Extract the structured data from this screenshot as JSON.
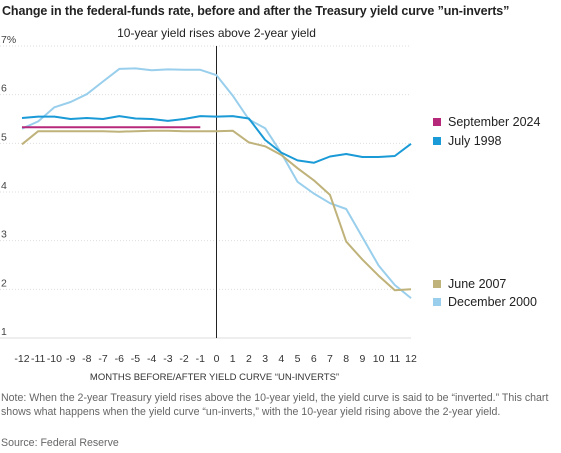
{
  "title": "Change in the federal-funds rate, before and after the Treasury yield curve ”un-inverts”",
  "note": "Note: When the 2-year Treasury yield rises above the 10-year yield, the yield curve is said to be “inverted.” This chart shows what happens when the yield curve “un-inverts,” with the 10-year yield rising above the 2-year yield.",
  "source": "Source: Federal Reserve",
  "chart_data": {
    "type": "line",
    "annotation": "10-year yield rises above 2-year yield",
    "xlabel": "MONTHS BEFORE/AFTER YIELD CURVE “UN-INVERTS”",
    "ylabel": "",
    "x": [
      -12,
      -11,
      -10,
      -9,
      -8,
      -7,
      -6,
      -5,
      -4,
      -3,
      -2,
      -1,
      0,
      1,
      2,
      3,
      4,
      5,
      6,
      7,
      8,
      9,
      10,
      11,
      12
    ],
    "xlim": [
      -12,
      12
    ],
    "ylim": [
      1,
      7
    ],
    "yticks": [
      1,
      2,
      3,
      4,
      5,
      6,
      7
    ],
    "ytick_labels": [
      "1",
      "2",
      "3",
      "4",
      "5",
      "6",
      "7%"
    ],
    "grid": true,
    "legend": "right, labels at line ends",
    "series": [
      {
        "name": "September 2024",
        "color": "#b5287a",
        "x": [
          -12,
          -11,
          -10,
          -9,
          -8,
          -7,
          -6,
          -5,
          -4,
          -3,
          -2,
          -1
        ],
        "values": [
          5.33,
          5.33,
          5.33,
          5.33,
          5.33,
          5.33,
          5.33,
          5.33,
          5.33,
          5.33,
          5.33,
          5.33
        ]
      },
      {
        "name": "July 1998",
        "color": "#1a9ad6",
        "x": [
          -12,
          -11,
          -10,
          -9,
          -8,
          -7,
          -6,
          -5,
          -4,
          -3,
          -2,
          -1,
          0,
          1,
          2,
          3,
          4,
          5,
          6,
          7,
          8,
          9,
          10,
          11,
          12
        ],
        "values": [
          5.52,
          5.55,
          5.55,
          5.5,
          5.52,
          5.5,
          5.56,
          5.51,
          5.5,
          5.46,
          5.5,
          5.56,
          5.55,
          5.56,
          5.51,
          5.07,
          4.81,
          4.65,
          4.6,
          4.73,
          4.78,
          4.72,
          4.72,
          4.74,
          4.99
        ]
      },
      {
        "name": "June 2007",
        "color": "#bfb27a",
        "x": [
          -12,
          -11,
          -10,
          -9,
          -8,
          -7,
          -6,
          -5,
          -4,
          -3,
          -2,
          -1,
          0,
          1,
          2,
          3,
          4,
          5,
          6,
          7,
          8,
          9,
          10,
          11,
          12
        ],
        "values": [
          4.98,
          5.25,
          5.25,
          5.25,
          5.25,
          5.25,
          5.24,
          5.25,
          5.26,
          5.26,
          5.25,
          5.25,
          5.25,
          5.26,
          5.02,
          4.94,
          4.76,
          4.49,
          4.24,
          3.94,
          2.98,
          2.61,
          2.28,
          1.98,
          2.0
        ]
      },
      {
        "name": "December 2000",
        "color": "#99cfec",
        "x": [
          -12,
          -11,
          -10,
          -9,
          -8,
          -7,
          -6,
          -5,
          -4,
          -3,
          -2,
          -1,
          0,
          1,
          2,
          3,
          4,
          5,
          6,
          7,
          8,
          9,
          10,
          11,
          12
        ],
        "values": [
          5.3,
          5.45,
          5.74,
          5.85,
          6.01,
          6.27,
          6.53,
          6.54,
          6.5,
          6.52,
          6.51,
          6.51,
          6.4,
          5.98,
          5.49,
          5.31,
          4.8,
          4.21,
          3.97,
          3.77,
          3.65,
          3.07,
          2.49,
          2.09,
          1.82
        ]
      }
    ]
  }
}
